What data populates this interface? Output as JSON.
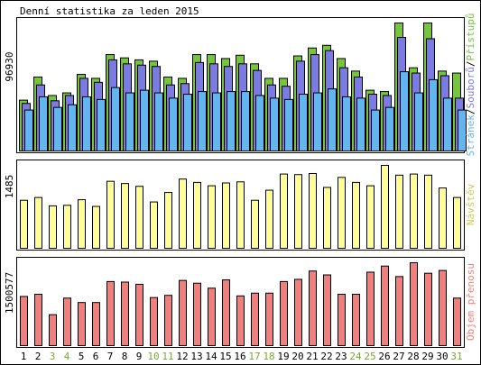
{
  "chart_data": {
    "type": "bar",
    "title": "Denní statistika za leden 2015",
    "categories": [
      "1",
      "2",
      "3",
      "4",
      "5",
      "6",
      "7",
      "8",
      "9",
      "10",
      "11",
      "12",
      "13",
      "14",
      "15",
      "16",
      "17",
      "18",
      "19",
      "20",
      "21",
      "22",
      "23",
      "24",
      "25",
      "26",
      "27",
      "28",
      "29",
      "30",
      "31"
    ],
    "weekend_days": [
      "3",
      "4",
      "10",
      "11",
      "17",
      "18",
      "24",
      "25",
      "31"
    ],
    "panels": [
      {
        "label": "96930",
        "legend": [
          "Stránek",
          "Souborů",
          "Přístupů"
        ],
        "ylim": [
          0,
          96930
        ],
        "series": [
          {
            "name": "Přístupů",
            "color": "#77c43e",
            "values": [
              38500,
              56000,
              42000,
              44000,
              58000,
              55000,
              73000,
              70500,
              69000,
              68000,
              56000,
              55000,
              73000,
              73000,
              70000,
              72500,
              66000,
              55000,
              55000,
              72000,
              78000,
              80000,
              70000,
              60500,
              46000,
              45000,
              96930,
              63000,
              96930,
              60500,
              59000
            ]
          },
          {
            "name": "Souborů",
            "color": "#7b7be6",
            "values": [
              36000,
              50000,
              38000,
              42000,
              55000,
              52000,
              69000,
              66000,
              65000,
              64000,
              50000,
              51000,
              67000,
              66000,
              64000,
              66000,
              61000,
              50000,
              49000,
              68000,
              73000,
              76000,
              63000,
              56000,
              43000,
              42000,
              86000,
              59000,
              85000,
              57000,
              40000
            ]
          },
          {
            "name": "Stránek",
            "color": "#64b4f0",
            "values": [
              31000,
              41000,
              33000,
              35000,
              41000,
              39000,
              48000,
              44000,
              46000,
              44000,
              40000,
              43000,
              45000,
              44000,
              45000,
              45000,
              42000,
              40000,
              39000,
              43000,
              44000,
              47000,
              41000,
              40000,
              31000,
              33000,
              60000,
              44000,
              54000,
              40000,
              31000
            ]
          }
        ]
      },
      {
        "label": "1485",
        "legend": [
          "Návštěv"
        ],
        "ylim": [
          0,
          1485
        ],
        "series": [
          {
            "name": "Návštěv",
            "color": "#ffff99",
            "values": [
              860,
              910,
              760,
              770,
              870,
              750,
              1200,
              1160,
              1110,
              830,
              1000,
              1240,
              1180,
              1120,
              1170,
              1190,
              860,
              1040,
              1330,
              1320,
              1340,
              1090,
              1270,
              1180,
              1120,
              1485,
              1310,
              1330,
              1310,
              1080,
              910
            ]
          }
        ]
      },
      {
        "label": "1500577",
        "legend": [
          "Objem přenosu"
        ],
        "ylim": [
          0,
          1500577
        ],
        "series": [
          {
            "name": "Objem přenosu",
            "color": "#f08080",
            "values": [
              890000,
              930000,
              560000,
              860000,
              780000,
              780000,
              1160000,
              1150000,
              1110000,
              870000,
              910000,
              1180000,
              1130000,
              1040000,
              1190000,
              900000,
              950000,
              950000,
              1160000,
              1200000,
              1350000,
              1280000,
              930000,
              930000,
              1330000,
              1440000,
              1250000,
              1500577,
              1310000,
              1360000,
              860000
            ]
          }
        ]
      }
    ]
  }
}
